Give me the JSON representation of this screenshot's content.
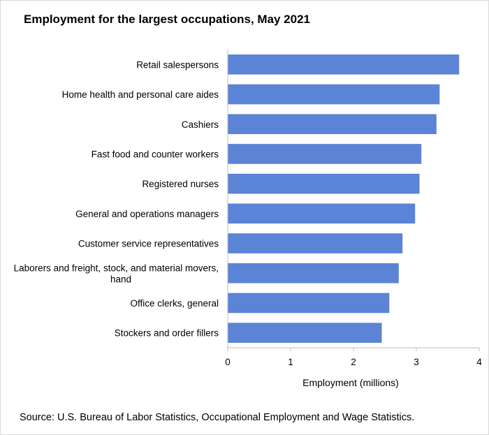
{
  "chart_data": {
    "type": "bar",
    "orientation": "horizontal",
    "title": "Employment for the largest occupations, May 2021",
    "categories": [
      "Retail salespersons",
      "Home health and personal care aides",
      "Cashiers",
      "Fast food and counter workers",
      "Registered nurses",
      "General and operations managers",
      "Customer service representatives",
      [
        "Laborers and freight, stock, and material movers,",
        "hand"
      ],
      "Office clerks, general",
      "Stockers and order fillers"
    ],
    "values": [
      3.68,
      3.37,
      3.32,
      3.08,
      3.05,
      2.98,
      2.78,
      2.72,
      2.57,
      2.45
    ],
    "xlabel": "Employment (millions)",
    "ylabel": "",
    "xlim": [
      0,
      4
    ],
    "xticks": [
      0,
      1,
      2,
      3,
      4
    ],
    "grid": false,
    "bar_color": "#5b83d6",
    "source": "Source: U.S. Bureau of Labor Statistics, Occupational Employment and Wage Statistics."
  }
}
